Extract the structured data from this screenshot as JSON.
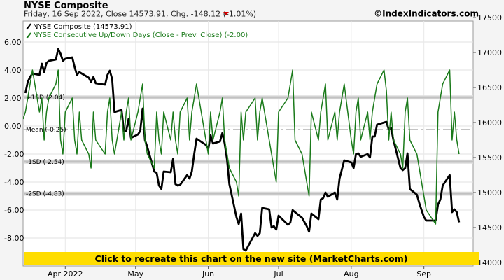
{
  "header": {
    "title": "NYSE Composite",
    "subtitle": "Friday, 16 Sep 2022, Close 14573.91, Chg. -148.12 (-1.01%)",
    "watermark": "©IndexIndicators.com",
    "change_marker_color": "#d00000"
  },
  "banner": {
    "text": "Click to recreate this chart on the new site (MarketCharts.com)",
    "color": "#ffdd00"
  },
  "chart_data": {
    "type": "line",
    "legend_position": "top-left",
    "grid": true,
    "left_axis": {
      "range": [
        -10,
        7.5
      ],
      "ticks": [
        "6.00",
        "4.00",
        "2.00",
        "0.00",
        "-2.00",
        "-4.00",
        "-6.00",
        "-8.00"
      ],
      "tick_values": [
        6,
        4,
        2,
        0,
        -2,
        -4,
        -6,
        -8
      ]
    },
    "right_axis": {
      "range": [
        13950,
        17450
      ],
      "ticks": [
        "17500",
        "17000",
        "16500",
        "16000",
        "15500",
        "15000",
        "14500",
        "14000"
      ],
      "tick_values": [
        17500,
        17000,
        16500,
        16000,
        15500,
        15000,
        14500,
        14000
      ]
    },
    "x_axis": {
      "range": [
        "2022-03-14",
        "2022-09-22"
      ],
      "ticks": [
        {
          "label": "Apr 2022",
          "date": "2022-04-01"
        },
        {
          "label": "May",
          "date": "2022-05-01"
        },
        {
          "label": "Jun",
          "date": "2022-06-01"
        },
        {
          "label": "Jul",
          "date": "2022-07-01"
        },
        {
          "label": "Aug",
          "date": "2022-08-01"
        },
        {
          "label": "Sep",
          "date": "2022-09-01"
        }
      ]
    },
    "levels": [
      {
        "label": "+1SD (2.04)",
        "value": 2.04,
        "style": "band"
      },
      {
        "label": "Mean (-0.25)",
        "value": -0.25,
        "style": "dashdot"
      },
      {
        "label": "-1SD (-2.54)",
        "value": -2.54,
        "style": "band"
      },
      {
        "label": "-2SD (-4.83)",
        "value": -4.83,
        "style": "band"
      }
    ],
    "series": [
      {
        "name": "NYSE Composite (14573.91)",
        "axis": "right",
        "color": "#000000",
        "points": [
          [
            "2022-03-15",
            16420
          ],
          [
            "2022-03-16",
            16580
          ],
          [
            "2022-03-17",
            16650
          ],
          [
            "2022-03-18",
            16700
          ],
          [
            "2022-03-21",
            16680
          ],
          [
            "2022-03-22",
            16840
          ],
          [
            "2022-03-23",
            16720
          ],
          [
            "2022-03-24",
            16850
          ],
          [
            "2022-03-25",
            16880
          ],
          [
            "2022-03-28",
            16900
          ],
          [
            "2022-03-29",
            17050
          ],
          [
            "2022-03-30",
            16980
          ],
          [
            "2022-03-31",
            16880
          ],
          [
            "2022-04-01",
            16910
          ],
          [
            "2022-04-04",
            16930
          ],
          [
            "2022-04-05",
            16790
          ],
          [
            "2022-04-06",
            16680
          ],
          [
            "2022-04-07",
            16720
          ],
          [
            "2022-04-08",
            16700
          ],
          [
            "2022-04-11",
            16640
          ],
          [
            "2022-04-12",
            16580
          ],
          [
            "2022-04-13",
            16650
          ],
          [
            "2022-04-14",
            16560
          ],
          [
            "2022-04-18",
            16540
          ],
          [
            "2022-04-19",
            16680
          ],
          [
            "2022-04-20",
            16740
          ],
          [
            "2022-04-21",
            16620
          ],
          [
            "2022-04-22",
            16150
          ],
          [
            "2022-04-25",
            16180
          ],
          [
            "2022-04-26",
            15880
          ],
          [
            "2022-04-27",
            15880
          ],
          [
            "2022-04-28",
            16050
          ],
          [
            "2022-04-29",
            15780
          ],
          [
            "2022-05-02",
            15830
          ],
          [
            "2022-05-03",
            15880
          ],
          [
            "2022-05-04",
            16200
          ],
          [
            "2022-05-05",
            15750
          ],
          [
            "2022-05-06",
            15650
          ],
          [
            "2022-05-09",
            15300
          ],
          [
            "2022-05-10",
            15280
          ],
          [
            "2022-05-11",
            15100
          ],
          [
            "2022-05-12",
            15050
          ],
          [
            "2022-05-13",
            15300
          ],
          [
            "2022-05-16",
            15290
          ],
          [
            "2022-05-17",
            15480
          ],
          [
            "2022-05-18",
            15120
          ],
          [
            "2022-05-19",
            15100
          ],
          [
            "2022-05-20",
            15110
          ],
          [
            "2022-05-23",
            15250
          ],
          [
            "2022-05-24",
            15200
          ],
          [
            "2022-05-25",
            15300
          ],
          [
            "2022-05-26",
            15550
          ],
          [
            "2022-05-27",
            15770
          ],
          [
            "2022-05-31",
            15680
          ],
          [
            "2022-06-01",
            15620
          ],
          [
            "2022-06-02",
            15820
          ],
          [
            "2022-06-03",
            15700
          ],
          [
            "2022-06-06",
            15730
          ],
          [
            "2022-06-07",
            15850
          ],
          [
            "2022-06-08",
            15700
          ],
          [
            "2022-06-09",
            15470
          ],
          [
            "2022-06-10",
            15120
          ],
          [
            "2022-06-13",
            14650
          ],
          [
            "2022-06-14",
            14550
          ],
          [
            "2022-06-15",
            14700
          ],
          [
            "2022-06-16",
            14190
          ],
          [
            "2022-06-17",
            14170
          ],
          [
            "2022-06-21",
            14420
          ],
          [
            "2022-06-22",
            14380
          ],
          [
            "2022-06-23",
            14420
          ],
          [
            "2022-06-24",
            14780
          ],
          [
            "2022-06-27",
            14760
          ],
          [
            "2022-06-28",
            14500
          ],
          [
            "2022-06-29",
            14520
          ],
          [
            "2022-06-30",
            14470
          ],
          [
            "2022-07-01",
            14670
          ],
          [
            "2022-07-05",
            14540
          ],
          [
            "2022-07-06",
            14570
          ],
          [
            "2022-07-07",
            14750
          ],
          [
            "2022-07-08",
            14720
          ],
          [
            "2022-07-11",
            14640
          ],
          [
            "2022-07-12",
            14580
          ],
          [
            "2022-07-13",
            14520
          ],
          [
            "2022-07-14",
            14440
          ],
          [
            "2022-07-15",
            14700
          ],
          [
            "2022-07-18",
            14620
          ],
          [
            "2022-07-19",
            14900
          ],
          [
            "2022-07-20",
            14920
          ],
          [
            "2022-07-21",
            15000
          ],
          [
            "2022-07-22",
            14940
          ],
          [
            "2022-07-25",
            15000
          ],
          [
            "2022-07-26",
            14900
          ],
          [
            "2022-07-27",
            15200
          ],
          [
            "2022-07-28",
            15330
          ],
          [
            "2022-07-29",
            15460
          ],
          [
            "2022-08-01",
            15430
          ],
          [
            "2022-08-02",
            15350
          ],
          [
            "2022-08-03",
            15550
          ],
          [
            "2022-08-04",
            15560
          ],
          [
            "2022-08-05",
            15510
          ],
          [
            "2022-08-08",
            15550
          ],
          [
            "2022-08-09",
            15500
          ],
          [
            "2022-08-10",
            15800
          ],
          [
            "2022-08-11",
            15800
          ],
          [
            "2022-08-12",
            15970
          ],
          [
            "2022-08-15",
            16000
          ],
          [
            "2022-08-16",
            16010
          ],
          [
            "2022-08-17",
            15900
          ],
          [
            "2022-08-18",
            15920
          ],
          [
            "2022-08-19",
            15750
          ],
          [
            "2022-08-22",
            15350
          ],
          [
            "2022-08-23",
            15320
          ],
          [
            "2022-08-24",
            15350
          ],
          [
            "2022-08-25",
            15560
          ],
          [
            "2022-08-26",
            15050
          ],
          [
            "2022-08-29",
            14970
          ],
          [
            "2022-08-30",
            14850
          ],
          [
            "2022-08-31",
            14750
          ],
          [
            "2022-09-01",
            14650
          ],
          [
            "2022-09-02",
            14600
          ],
          [
            "2022-09-06",
            14600
          ],
          [
            "2022-09-07",
            14830
          ],
          [
            "2022-09-08",
            14900
          ],
          [
            "2022-09-09",
            15100
          ],
          [
            "2022-09-12",
            15250
          ],
          [
            "2022-09-13",
            14720
          ],
          [
            "2022-09-14",
            14760
          ],
          [
            "2022-09-15",
            14720
          ],
          [
            "2022-09-16",
            14574
          ]
        ]
      },
      {
        "name": "NYSE Consecutive Up/Down Days (Close - Prev. Close) (-2.00)",
        "axis": "left",
        "color": "#1a7a1a",
        "points": [
          [
            "2022-03-14",
            0.5
          ],
          [
            "2022-03-15",
            1
          ],
          [
            "2022-03-16",
            2
          ],
          [
            "2022-03-17",
            3
          ],
          [
            "2022-03-18",
            4
          ],
          [
            "2022-03-21",
            1
          ],
          [
            "2022-03-22",
            2
          ],
          [
            "2022-03-23",
            -1
          ],
          [
            "2022-03-24",
            1
          ],
          [
            "2022-03-25",
            2
          ],
          [
            "2022-03-28",
            3
          ],
          [
            "2022-03-29",
            4
          ],
          [
            "2022-03-30",
            -1
          ],
          [
            "2022-03-31",
            -2
          ],
          [
            "2022-04-01",
            1
          ],
          [
            "2022-04-04",
            2
          ],
          [
            "2022-04-05",
            -1
          ],
          [
            "2022-04-06",
            -2
          ],
          [
            "2022-04-07",
            1
          ],
          [
            "2022-04-08",
            -1
          ],
          [
            "2022-04-11",
            -2
          ],
          [
            "2022-04-12",
            -3
          ],
          [
            "2022-04-13",
            1
          ],
          [
            "2022-04-14",
            -1
          ],
          [
            "2022-04-18",
            -2
          ],
          [
            "2022-04-19",
            1
          ],
          [
            "2022-04-20",
            2
          ],
          [
            "2022-04-21",
            -1
          ],
          [
            "2022-04-22",
            -2
          ],
          [
            "2022-04-25",
            1
          ],
          [
            "2022-04-26",
            -1
          ],
          [
            "2022-04-27",
            1
          ],
          [
            "2022-04-28",
            2
          ],
          [
            "2022-04-29",
            -1
          ],
          [
            "2022-05-02",
            1
          ],
          [
            "2022-05-03",
            2
          ],
          [
            "2022-05-04",
            3
          ],
          [
            "2022-05-05",
            -1
          ],
          [
            "2022-05-06",
            -2
          ],
          [
            "2022-05-09",
            -3
          ],
          [
            "2022-05-10",
            1
          ],
          [
            "2022-05-11",
            -1
          ],
          [
            "2022-05-12",
            -2
          ],
          [
            "2022-05-13",
            1
          ],
          [
            "2022-05-16",
            -1
          ],
          [
            "2022-05-17",
            1
          ],
          [
            "2022-05-18",
            -1
          ],
          [
            "2022-05-19",
            -2
          ],
          [
            "2022-05-20",
            1
          ],
          [
            "2022-05-23",
            2
          ],
          [
            "2022-05-24",
            -1
          ],
          [
            "2022-05-25",
            1
          ],
          [
            "2022-05-26",
            2
          ],
          [
            "2022-05-27",
            3
          ],
          [
            "2022-05-31",
            -1
          ],
          [
            "2022-06-01",
            -2
          ],
          [
            "2022-06-02",
            1
          ],
          [
            "2022-06-03",
            -1
          ],
          [
            "2022-06-06",
            1
          ],
          [
            "2022-06-07",
            2
          ],
          [
            "2022-06-08",
            -1
          ],
          [
            "2022-06-09",
            -2
          ],
          [
            "2022-06-10",
            -3
          ],
          [
            "2022-06-13",
            -4
          ],
          [
            "2022-06-14",
            -5
          ],
          [
            "2022-06-15",
            1
          ],
          [
            "2022-06-16",
            -1
          ],
          [
            "2022-06-17",
            1
          ],
          [
            "2022-06-21",
            2
          ],
          [
            "2022-06-22",
            -1
          ],
          [
            "2022-06-23",
            1
          ],
          [
            "2022-06-24",
            2
          ],
          [
            "2022-06-27",
            -1
          ],
          [
            "2022-06-28",
            -2
          ],
          [
            "2022-06-29",
            -3
          ],
          [
            "2022-06-30",
            -4
          ],
          [
            "2022-07-01",
            1
          ],
          [
            "2022-07-05",
            2
          ],
          [
            "2022-07-06",
            3
          ],
          [
            "2022-07-07",
            4
          ],
          [
            "2022-07-08",
            -1
          ],
          [
            "2022-07-11",
            -2
          ],
          [
            "2022-07-12",
            -3
          ],
          [
            "2022-07-13",
            -4
          ],
          [
            "2022-07-14",
            -5
          ],
          [
            "2022-07-15",
            1
          ],
          [
            "2022-07-18",
            -1
          ],
          [
            "2022-07-19",
            1
          ],
          [
            "2022-07-20",
            2
          ],
          [
            "2022-07-21",
            3
          ],
          [
            "2022-07-22",
            -1
          ],
          [
            "2022-07-25",
            1
          ],
          [
            "2022-07-26",
            -1
          ],
          [
            "2022-07-27",
            1
          ],
          [
            "2022-07-28",
            2
          ],
          [
            "2022-07-29",
            3
          ],
          [
            "2022-08-01",
            -1
          ],
          [
            "2022-08-02",
            -2
          ],
          [
            "2022-08-03",
            1
          ],
          [
            "2022-08-04",
            2
          ],
          [
            "2022-08-05",
            -1
          ],
          [
            "2022-08-08",
            1
          ],
          [
            "2022-08-09",
            -1
          ],
          [
            "2022-08-10",
            1
          ],
          [
            "2022-08-11",
            2
          ],
          [
            "2022-08-12",
            3
          ],
          [
            "2022-08-15",
            4
          ],
          [
            "2022-08-16",
            2.5
          ],
          [
            "2022-08-17",
            -1
          ],
          [
            "2022-08-18",
            1
          ],
          [
            "2022-08-19",
            -1
          ],
          [
            "2022-08-22",
            -2
          ],
          [
            "2022-08-23",
            -3
          ],
          [
            "2022-08-24",
            1
          ],
          [
            "2022-08-25",
            2
          ],
          [
            "2022-08-26",
            -1
          ],
          [
            "2022-08-29",
            -2
          ],
          [
            "2022-08-30",
            -3
          ],
          [
            "2022-08-31",
            -4
          ],
          [
            "2022-09-01",
            -5
          ],
          [
            "2022-09-02",
            -6
          ],
          [
            "2022-09-06",
            -7
          ],
          [
            "2022-09-07",
            1
          ],
          [
            "2022-09-08",
            2
          ],
          [
            "2022-09-09",
            3
          ],
          [
            "2022-09-12",
            4
          ],
          [
            "2022-09-13",
            -1
          ],
          [
            "2022-09-14",
            1
          ],
          [
            "2022-09-15",
            -1
          ],
          [
            "2022-09-16",
            -2
          ]
        ]
      }
    ]
  }
}
